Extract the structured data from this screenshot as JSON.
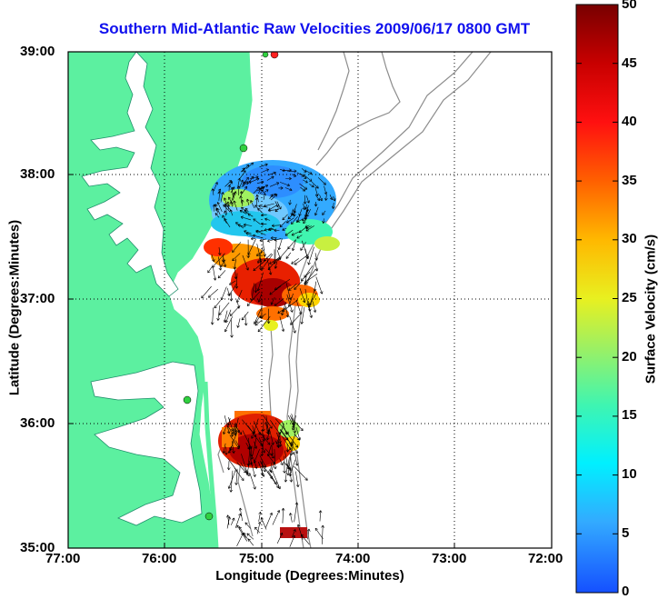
{
  "title": "Southern Mid-Atlantic Raw Velocities 2009/06/17 0800 GMT",
  "x_axis": {
    "label": "Longitude (Degrees:Minutes)",
    "ticks": [
      "77:00",
      "76:00",
      "75:00",
      "74:00",
      "73:00",
      "72:00"
    ]
  },
  "y_axis": {
    "label": "Latitude (Degrees:Minutes)",
    "ticks": [
      "39:00",
      "38:00",
      "37:00",
      "36:00",
      "35:00"
    ]
  },
  "colorbar": {
    "label": "Surface Velocity (cm/s)",
    "ticks": [
      "0",
      "5",
      "10",
      "15",
      "20",
      "25",
      "30",
      "35",
      "40",
      "45",
      "50"
    ],
    "min": 0,
    "max": 50
  },
  "colors": {
    "title": "#1010ee",
    "land": "#5cf0a0",
    "bathymetry": "#8c8c8c",
    "arrow": "#000000"
  }
}
